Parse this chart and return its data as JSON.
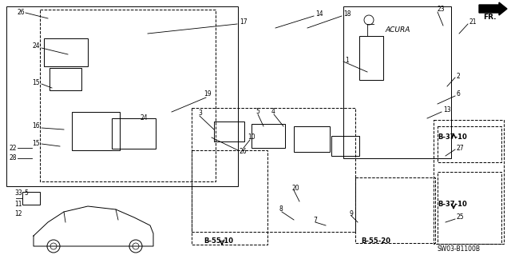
{
  "background_color": "#ffffff",
  "text_color": "#000000",
  "line_color": "#000000",
  "fig_width": 6.4,
  "fig_height": 3.19,
  "dpi": 100,
  "diagram_id": "SW03-B1100B",
  "fs_small": 5.5,
  "fs_bold": 6.0,
  "fr_label": "FR.",
  "acura_label": "ACURA",
  "callouts": [
    "B-55-10",
    "B-55-20",
    "B-37-10"
  ],
  "part_labels": [
    "1",
    "2",
    "3",
    "4",
    "5",
    "6",
    "7",
    "8",
    "9",
    "10",
    "11",
    "12",
    "13",
    "14",
    "15",
    "16",
    "17",
    "18",
    "19",
    "20",
    "21",
    "22",
    "23",
    "24",
    "25",
    "26",
    "27",
    "28",
    "33"
  ]
}
